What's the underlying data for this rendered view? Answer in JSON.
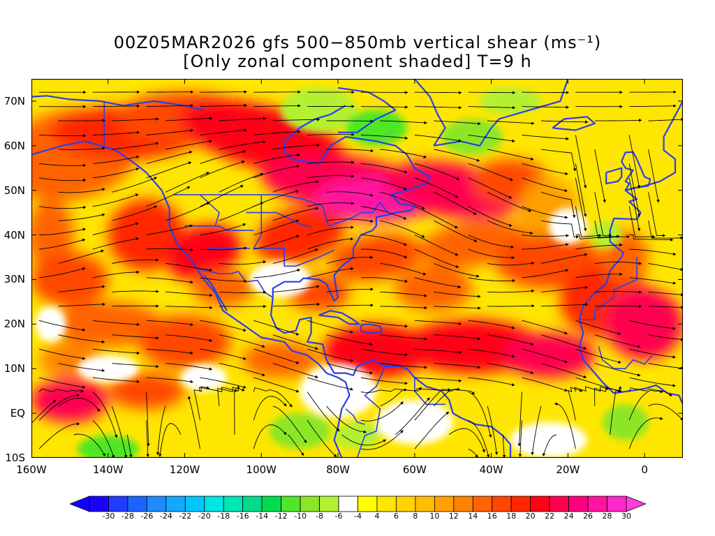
{
  "title": {
    "line1": "00Z05MAR2026 gfs 500−850mb vertical shear (ms⁻¹)",
    "line2": "[Only zonal component shaded] T=9 h"
  },
  "map": {
    "lon_range": [
      -160,
      10
    ],
    "lat_range": [
      -10,
      75
    ],
    "coast_color": "#2b3ee6",
    "streamline_color": "#000000",
    "y_ticks": [
      {
        "lat": 70,
        "label": "70N"
      },
      {
        "lat": 60,
        "label": "60N"
      },
      {
        "lat": 50,
        "label": "50N"
      },
      {
        "lat": 40,
        "label": "40N"
      },
      {
        "lat": 30,
        "label": "30N"
      },
      {
        "lat": 20,
        "label": "20N"
      },
      {
        "lat": 10,
        "label": "10N"
      },
      {
        "lat": 0,
        "label": "EQ"
      },
      {
        "lat": -10,
        "label": "10S"
      }
    ],
    "x_ticks": [
      {
        "lon": -160,
        "label": "160W"
      },
      {
        "lon": -140,
        "label": "140W"
      },
      {
        "lon": -120,
        "label": "120W"
      },
      {
        "lon": -100,
        "label": "100W"
      },
      {
        "lon": -80,
        "label": "80W"
      },
      {
        "lon": -60,
        "label": "60W"
      },
      {
        "lon": -40,
        "label": "40W"
      },
      {
        "lon": -20,
        "label": "20W"
      },
      {
        "lon": 0,
        "label": "0"
      }
    ]
  },
  "colorbar": {
    "labels": [
      "-30",
      "-28",
      "-26",
      "-24",
      "-22",
      "-20",
      "-18",
      "-16",
      "-14",
      "-12",
      "-10",
      "-8",
      "-6",
      "-4",
      "4",
      "6",
      "8",
      "10",
      "12",
      "14",
      "16",
      "18",
      "20",
      "22",
      "24",
      "26",
      "28",
      "30"
    ],
    "colors": [
      "#1a00ff",
      "#1f3cff",
      "#1a64ff",
      "#1e8cff",
      "#14a8ff",
      "#00c8ff",
      "#00e6e6",
      "#00e6b4",
      "#00dc8c",
      "#00dc50",
      "#50e628",
      "#8ce628",
      "#b4f032",
      "#ffffff",
      "#ffff00",
      "#ffe600",
      "#ffd200",
      "#ffbe00",
      "#ffa000",
      "#ff8200",
      "#ff6400",
      "#ff4600",
      "#ff2800",
      "#ff0014",
      "#ff0050",
      "#ff0080",
      "#ff14a0",
      "#ff28c8"
    ],
    "low_arrow_color": "#1400ff",
    "high_arrow_color": "#ff3cdc"
  }
}
